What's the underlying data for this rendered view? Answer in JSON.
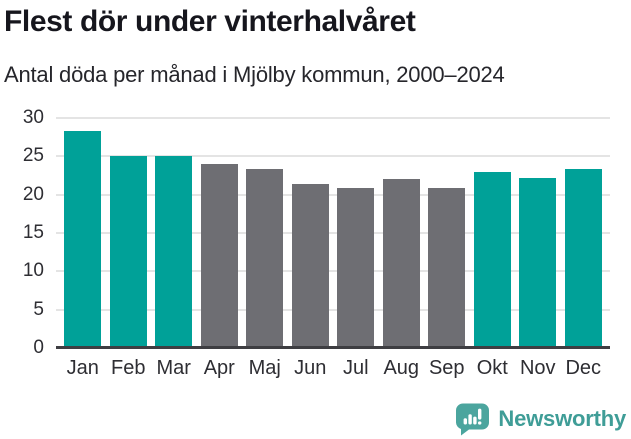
{
  "chart_data": {
    "type": "bar",
    "title": "Flest dör under vinterhalvåret",
    "subtitle": "Antal döda per månad i Mjölby kommun, 2000–2024",
    "categories": [
      "Jan",
      "Feb",
      "Mar",
      "Apr",
      "Maj",
      "Jun",
      "Jul",
      "Aug",
      "Sep",
      "Okt",
      "Nov",
      "Dec"
    ],
    "values": [
      28.3,
      25.0,
      25.1,
      24.0,
      23.4,
      21.4,
      20.9,
      22.1,
      20.9,
      22.9,
      22.2,
      23.4
    ],
    "highlighted_categories": [
      "Jan",
      "Feb",
      "Mar",
      "Okt",
      "Nov",
      "Dec"
    ],
    "colors": {
      "highlight": "#00A198",
      "muted": "#6E6E73",
      "gridline": "#E4E4E4",
      "axis": "#3E3E42",
      "tick_text": "#2E2E33"
    },
    "yticks": [
      0,
      5,
      10,
      15,
      20,
      25,
      30
    ],
    "ylim": [
      0,
      30
    ],
    "xlabel": "",
    "ylabel": "",
    "grid": "horizontal",
    "legend_position": "none"
  },
  "footer": {
    "brand_name": "Newsworthy",
    "brand_color": "#3F9D97",
    "brand_icon": "newsworthy-chart-bubble-icon"
  }
}
